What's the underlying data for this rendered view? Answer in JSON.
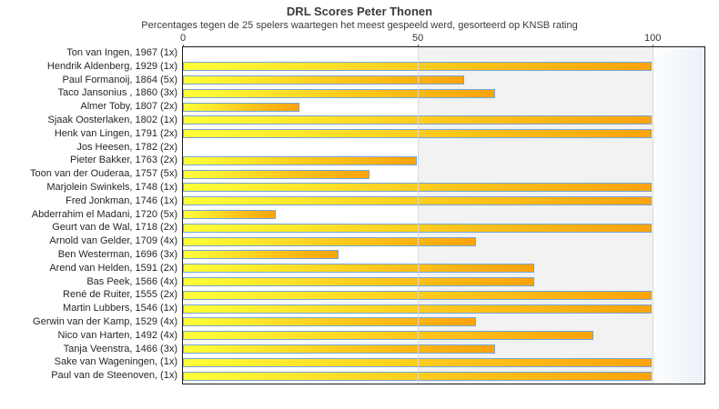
{
  "chart_data": {
    "type": "bar",
    "orientation": "horizontal",
    "title": "DRL Scores Peter Thonen",
    "subtitle": "Percentages tegen de 25 spelers waartegen het meest gespeeld werd, gesorteerd op KNSB rating",
    "categories": [
      "Ton van Ingen, 1967 (1x)",
      "Hendrik Aldenberg, 1929 (1x)",
      "Paul Formanoij, 1864 (5x)",
      "Taco Jansonius , 1860 (3x)",
      "Almer Toby, 1807 (2x)",
      "Sjaak Oosterlaken, 1802 (1x)",
      "Henk van Lingen, 1791 (2x)",
      "Jos Heesen, 1782 (2x)",
      "Pieter Bakker, 1763 (2x)",
      "Toon van der Ouderaa, 1757 (5x)",
      "Marjolein Swinkels, 1748 (1x)",
      "Fred Jonkman, 1746 (1x)",
      "Abderrahim el Madani, 1720 (5x)",
      "Geurt van de Wal, 1718 (2x)",
      "Arnold van Gelder, 1709 (4x)",
      "Ben Westerman, 1696 (3x)",
      "Arend van Helden, 1591 (2x)",
      "Bas Peek, 1566 (4x)",
      "René de Ruiter, 1555 (2x)",
      "Martin Lubbers, 1546 (1x)",
      "Gerwin van der Kamp, 1529 (4x)",
      "Nico van Harten, 1492 (4x)",
      "Tanja Veenstra, 1466 (3x)",
      "Sake van Wageningen,  (1x)",
      "Paul van de Steenoven,  (1x)"
    ],
    "values": [
      0,
      100,
      60,
      66.7,
      25,
      100,
      100,
      0,
      50,
      40,
      100,
      100,
      20,
      100,
      62.5,
      33.3,
      75,
      75,
      100,
      100,
      62.5,
      87.5,
      66.7,
      100,
      100
    ],
    "xlabel": "",
    "ylabel": "",
    "x_ticks": [
      0,
      50,
      100
    ],
    "xlim": [
      0,
      111
    ],
    "legend": "none",
    "grid": "vertical lines at 50 and 100; shaded band 50-100",
    "colors": {
      "bar_fill_start": "#ffff38",
      "bar_fill_end": "#fca30d",
      "bar_border": "#74a5d8",
      "band_50_100": "#f2f2f2",
      "band_over_100_start": "#fdfefe",
      "band_over_100_end": "#ebf1f8",
      "plot_border": "#1a1a1a",
      "gridline": "#d9d9d9"
    }
  }
}
